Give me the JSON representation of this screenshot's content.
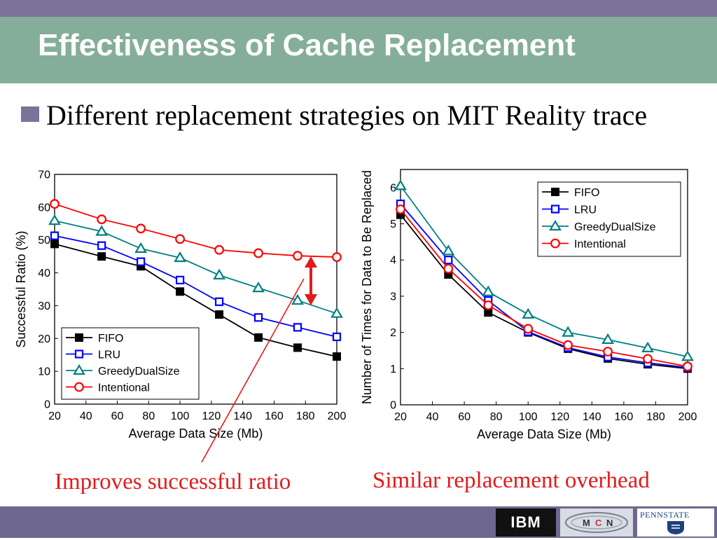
{
  "slide": {
    "title": "Effectiveness of Cache Replacement",
    "bullet": "Different replacement strategies on MIT Reality trace",
    "note_left": "Improves successful ratio",
    "note_right": "Similar replacement overhead",
    "logos": {
      "ibm": "IBM",
      "psu": "PENNSTATE",
      "mcn": [
        "M",
        "C",
        "N"
      ]
    }
  },
  "colors": {
    "fifo": "#000000",
    "lru": "#0000ff",
    "greedy": "#008080",
    "intentional": "#ff0000",
    "annotation": "#e31a1c"
  },
  "chart_data": [
    {
      "type": "line",
      "title": "",
      "xlabel": "Average Data Size (Mb)",
      "ylabel": "Successful Ratio (%)",
      "x": [
        20,
        50,
        75,
        100,
        125,
        150,
        175,
        200
      ],
      "xlim": [
        20,
        200
      ],
      "ylim": [
        0,
        70
      ],
      "xticks": [
        20,
        40,
        60,
        80,
        100,
        120,
        140,
        160,
        180,
        200
      ],
      "yticks": [
        0,
        10,
        20,
        30,
        40,
        50,
        60,
        70
      ],
      "legend": "bottom-left",
      "grid": false,
      "series": [
        {
          "name": "FIFO",
          "marker": "filled-square",
          "color": "#000000",
          "values": [
            48.8,
            45,
            42,
            34.3,
            27.3,
            20.3,
            17.2,
            14.5
          ]
        },
        {
          "name": "LRU",
          "marker": "open-square",
          "color": "#0000ff",
          "values": [
            51.3,
            48.3,
            43.4,
            37.8,
            31.2,
            26.4,
            23.4,
            20.5
          ]
        },
        {
          "name": "GreedyDualSize",
          "marker": "open-triangle",
          "color": "#008080",
          "values": [
            55.9,
            52.6,
            47.4,
            44.6,
            39.3,
            35.4,
            31.6,
            27.6
          ]
        },
        {
          "name": "Intentional",
          "marker": "open-circle",
          "color": "#ff0000",
          "values": [
            61,
            56.3,
            53.5,
            50.3,
            47,
            46,
            45.2,
            44.8
          ]
        }
      ]
    },
    {
      "type": "line",
      "title": "",
      "xlabel": "Average Data Size (Mb)",
      "ylabel": "Number of Times for Data to Be Replaced",
      "x": [
        20,
        50,
        75,
        100,
        125,
        150,
        175,
        200
      ],
      "xlim": [
        20,
        200
      ],
      "ylim": [
        0,
        6.5
      ],
      "xticks": [
        20,
        40,
        60,
        80,
        100,
        120,
        140,
        160,
        180,
        200
      ],
      "yticks": [
        0,
        1,
        2,
        3,
        4,
        5,
        6
      ],
      "legend": "top-right",
      "grid": false,
      "series": [
        {
          "name": "FIFO",
          "marker": "filled-square",
          "color": "#000000",
          "values": [
            5.25,
            3.6,
            2.55,
            2.0,
            1.55,
            1.28,
            1.12,
            1.0
          ]
        },
        {
          "name": "LRU",
          "marker": "open-square",
          "color": "#0000ff",
          "values": [
            5.55,
            4.0,
            2.88,
            2.02,
            1.58,
            1.32,
            1.16,
            1.03
          ]
        },
        {
          "name": "GreedyDualSize",
          "marker": "open-triangle",
          "color": "#008080",
          "values": [
            6.05,
            4.25,
            3.12,
            2.5,
            2.0,
            1.8,
            1.57,
            1.33
          ]
        },
        {
          "name": "Intentional",
          "marker": "open-circle",
          "color": "#ff0000",
          "values": [
            5.4,
            3.76,
            2.75,
            2.1,
            1.65,
            1.47,
            1.27,
            1.06
          ]
        }
      ]
    }
  ]
}
